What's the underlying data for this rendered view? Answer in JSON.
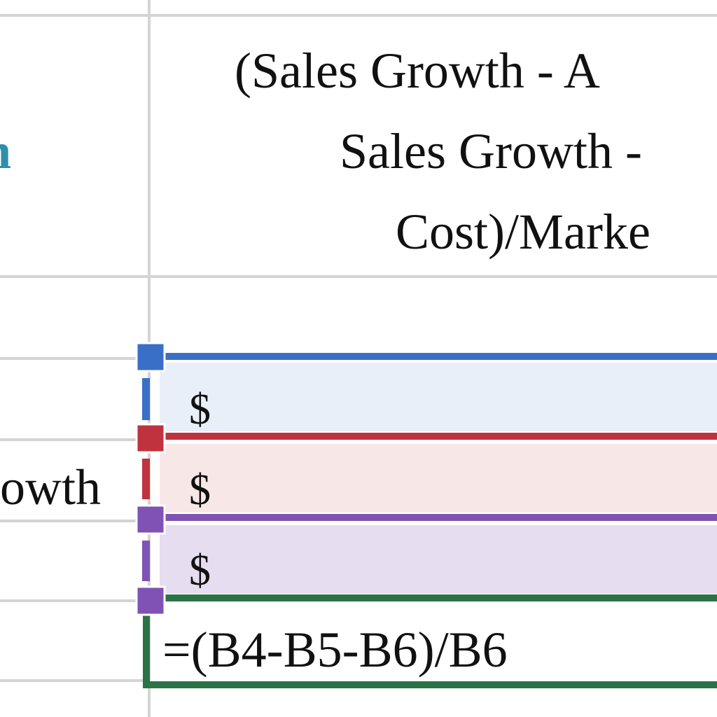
{
  "sheet": {
    "header_b": [
      "(Sales Growth - A",
      "Sales Growth -",
      "Cost)/Marke"
    ],
    "header_a": "n",
    "row_label": "owth",
    "dollars": [
      "$",
      "$",
      "$"
    ],
    "formula": "=(B4-B5-B6)/B6"
  }
}
